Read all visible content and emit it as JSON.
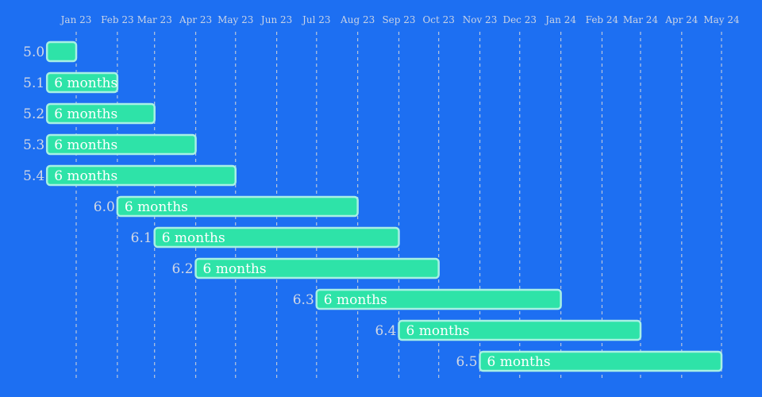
{
  "chart_data": {
    "type": "gantt",
    "x_axis_position": "top",
    "grid": true,
    "colors": {
      "background": "#1d6ff2",
      "bar_fill": "#2ee3a8",
      "bar_stroke": "#a8f0e4",
      "grid": "#b9c6dc",
      "text": "#d2d8e4"
    },
    "x_ticks": [
      {
        "date": "2023-01-01",
        "label": "Jan 23"
      },
      {
        "date": "2023-02-01",
        "label": "Feb 23"
      },
      {
        "date": "2023-03-01",
        "label": "Mar 23"
      },
      {
        "date": "2023-04-01",
        "label": "Apr 23"
      },
      {
        "date": "2023-05-01",
        "label": "May 23"
      },
      {
        "date": "2023-06-01",
        "label": "Jun 23"
      },
      {
        "date": "2023-07-01",
        "label": "Jul 23"
      },
      {
        "date": "2023-08-01",
        "label": "Aug 23"
      },
      {
        "date": "2023-09-01",
        "label": "Sep 23"
      },
      {
        "date": "2023-10-01",
        "label": "Oct 23"
      },
      {
        "date": "2023-11-01",
        "label": "Nov 23"
      },
      {
        "date": "2023-12-01",
        "label": "Dec 23"
      },
      {
        "date": "2024-01-01",
        "label": "Jan 24"
      },
      {
        "date": "2024-02-01",
        "label": "Feb 24"
      },
      {
        "date": "2024-03-01",
        "label": "Mar 24"
      },
      {
        "date": "2024-04-01",
        "label": "Apr 24"
      },
      {
        "date": "2024-05-01",
        "label": "May 24"
      }
    ],
    "tasks": [
      {
        "name": "5.0",
        "start": "2022-12-10",
        "end": "2023-01-01",
        "label": ""
      },
      {
        "name": "5.1",
        "start": "2022-12-10",
        "end": "2023-02-01",
        "label": "6 months"
      },
      {
        "name": "5.2",
        "start": "2022-12-10",
        "end": "2023-03-01",
        "label": "6 months"
      },
      {
        "name": "5.3",
        "start": "2022-12-10",
        "end": "2023-04-01",
        "label": "6 months"
      },
      {
        "name": "5.4",
        "start": "2022-12-10",
        "end": "2023-05-01",
        "label": "6 months"
      },
      {
        "name": "6.0",
        "start": "2023-02-01",
        "end": "2023-08-01",
        "label": "6 months"
      },
      {
        "name": "6.1",
        "start": "2023-03-01",
        "end": "2023-09-01",
        "label": "6 months"
      },
      {
        "name": "6.2",
        "start": "2023-04-01",
        "end": "2023-10-01",
        "label": "6 months"
      },
      {
        "name": "6.3",
        "start": "2023-07-01",
        "end": "2024-01-01",
        "label": "6 months"
      },
      {
        "name": "6.4",
        "start": "2023-09-01",
        "end": "2024-03-01",
        "label": "6 months"
      },
      {
        "name": "6.5",
        "start": "2023-11-01",
        "end": "2024-05-01",
        "label": "6 months"
      }
    ]
  }
}
